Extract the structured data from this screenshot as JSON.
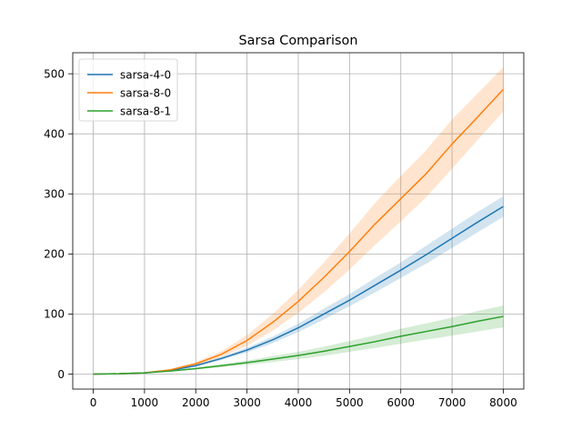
{
  "chart_data": {
    "type": "line",
    "title": "Sarsa Comparison",
    "xlabel": "",
    "ylabel": "",
    "xlim": [
      -400,
      8400
    ],
    "ylim": [
      -25,
      535
    ],
    "xticks": [
      0,
      1000,
      2000,
      3000,
      4000,
      5000,
      6000,
      7000,
      8000
    ],
    "yticks": [
      0,
      100,
      200,
      300,
      400,
      500
    ],
    "grid": true,
    "legend_position": "top-left",
    "series": [
      {
        "name": "sarsa-4-0",
        "color": "#1f77b4",
        "band_color": "#1f77b4",
        "x": [
          0,
          500,
          1000,
          1500,
          2000,
          2500,
          3000,
          3500,
          4000,
          4500,
          5000,
          5500,
          6000,
          6500,
          7000,
          7500,
          8000
        ],
        "y": [
          0,
          0.5,
          2,
          6,
          14,
          26,
          40,
          57,
          77,
          100,
          123,
          148,
          173,
          199,
          226,
          253,
          279
        ],
        "lower": [
          0,
          0.4,
          1.7,
          5.2,
          12.5,
          23.5,
          36,
          51.5,
          70,
          91,
          113,
          136,
          160,
          184,
          210,
          236,
          262
        ],
        "upper": [
          0,
          0.6,
          2.3,
          6.8,
          15.5,
          28.5,
          44,
          62.5,
          84,
          109,
          133,
          160,
          186,
          214,
          242,
          270,
          296
        ]
      },
      {
        "name": "sarsa-8-0",
        "color": "#ff7f0e",
        "band_color": "#ff7f0e",
        "x": [
          0,
          500,
          1000,
          1500,
          2000,
          2500,
          3000,
          3500,
          4000,
          4500,
          5000,
          5500,
          6000,
          6500,
          7000,
          7500,
          8000
        ],
        "y": [
          0,
          0.5,
          2,
          7,
          17,
          33,
          56,
          86,
          121,
          161,
          204,
          250,
          292,
          334,
          383,
          428,
          474
        ],
        "lower": [
          0,
          0.4,
          1.6,
          6,
          14,
          28,
          47,
          72,
          102,
          136,
          174,
          215,
          254,
          295,
          342,
          390,
          437
        ],
        "upper": [
          0,
          0.6,
          2.4,
          8,
          20,
          38,
          65,
          100,
          140,
          186,
          234,
          285,
          330,
          373,
          424,
          467,
          511
        ]
      },
      {
        "name": "sarsa-8-1",
        "color": "#2ca02c",
        "band_color": "#2ca02c",
        "x": [
          0,
          500,
          1000,
          1500,
          2000,
          2500,
          3000,
          3500,
          4000,
          4500,
          5000,
          5500,
          6000,
          6500,
          7000,
          7500,
          8000
        ],
        "y": [
          0,
          0.5,
          2,
          5,
          9,
          14,
          19,
          25,
          31,
          38,
          46,
          54,
          63,
          71,
          79,
          88,
          96
        ],
        "lower": [
          0,
          0.4,
          1.6,
          4.2,
          7.5,
          11.5,
          15.5,
          20,
          25,
          30.5,
          37,
          43.5,
          50.5,
          57.5,
          64,
          71,
          78
        ],
        "upper": [
          0,
          0.6,
          2.4,
          5.8,
          10.5,
          16.5,
          22.5,
          30,
          37,
          45.5,
          55,
          64.5,
          75.5,
          84.5,
          94,
          105,
          114
        ]
      }
    ]
  }
}
